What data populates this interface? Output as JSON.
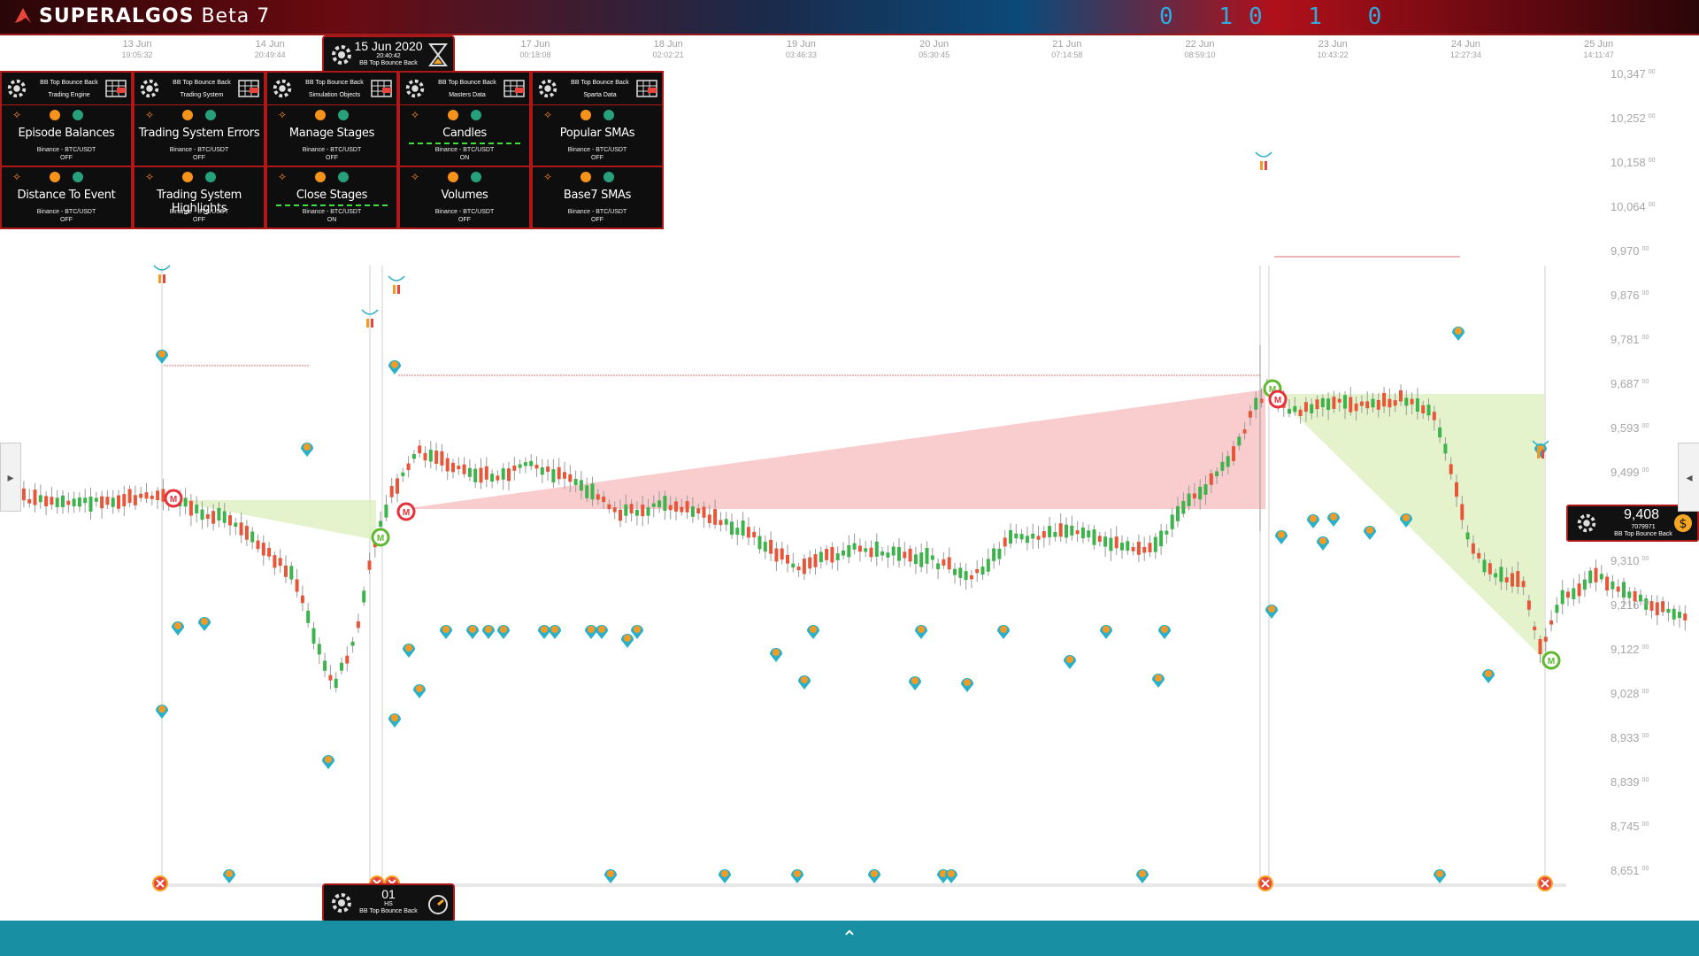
{
  "app": {
    "brand_a": "SUPER",
    "brand_b": "ALGOS",
    "version": "Beta 7",
    "banner_digits": "0 10 1 0"
  },
  "date_axis": [
    {
      "d": "13 Jun",
      "t": "19:05:32"
    },
    {
      "d": "14 Jun",
      "t": "20:49:44"
    },
    {
      "d": "17 Jun",
      "t": "00:18:08"
    },
    {
      "d": "18 Jun",
      "t": "02:02:21"
    },
    {
      "d": "19 Jun",
      "t": "03:46:33"
    },
    {
      "d": "20 Jun",
      "t": "05:30:45"
    },
    {
      "d": "21 Jun",
      "t": "07:14:58"
    },
    {
      "d": "22 Jun",
      "t": "08:59:10"
    },
    {
      "d": "23 Jun",
      "t": "10:43:22"
    },
    {
      "d": "24 Jun",
      "t": "12:27:34"
    },
    {
      "d": "25 Jun",
      "t": "14:11:47"
    }
  ],
  "price_axis": [
    "10,347",
    "10,252",
    "10,158",
    "10,064",
    "9,970",
    "9,876",
    "9,781",
    "9,687",
    "9,593",
    "9,499",
    "9,310",
    "9,216",
    "9,122",
    "9,028",
    "8,933",
    "8,839",
    "8,745",
    "8,651"
  ],
  "price_axis_suffix": "00",
  "time_machine": {
    "date": "15 Jun 2020",
    "time": "20:40:42",
    "name": "BB Top Bounce Back"
  },
  "time_frame": {
    "value": "01",
    "unit": "HS",
    "name": "BB Top Bounce Back"
  },
  "current_price": {
    "value": "9,408",
    "sub": "7079971",
    "name": "BB Top Bounce Back"
  },
  "layer_panels": [
    {
      "l1": "BB Top Bounce Back",
      "l2": "Trading Engine"
    },
    {
      "l1": "BB Top Bounce Back",
      "l2": "Trading System"
    },
    {
      "l1": "BB Top Bounce Back",
      "l2": "Simulation Objects"
    },
    {
      "l1": "BB Top Bounce Back",
      "l2": "Masters Data"
    },
    {
      "l1": "BB Top Bounce Back",
      "l2": "Sparta Data"
    }
  ],
  "layers_row1": [
    {
      "name": "Episode Balances",
      "market": "Binance - BTC/USDT",
      "status": "OFF"
    },
    {
      "name": "Trading System Errors",
      "market": "Binance - BTC/USDT",
      "status": "OFF"
    },
    {
      "name": "Manage Stages",
      "market": "Binance - BTC/USDT",
      "status": "OFF"
    },
    {
      "name": "Candles",
      "market": "Binance - BTC/USDT",
      "status": "ON"
    },
    {
      "name": "Popular SMAs",
      "market": "Binance - BTC/USDT",
      "status": "OFF"
    }
  ],
  "layers_row2": [
    {
      "name": "Distance To Event",
      "market": "Binance - BTC/USDT",
      "status": "OFF"
    },
    {
      "name": "Trading System Highlights",
      "market": "Binance - BTC/USDT",
      "status": "OFF"
    },
    {
      "name": "Close Stages",
      "market": "Binance - BTC/USDT",
      "status": "ON"
    },
    {
      "name": "Volumes",
      "market": "Binance - BTC/USDT",
      "status": "OFF"
    },
    {
      "name": "Base7 SMAs",
      "market": "Binance - BTC/USDT",
      "status": "OFF"
    }
  ],
  "colors": {
    "up": "#3cb44b",
    "down": "#e8563a",
    "stage_loss": "#f8c8c8",
    "stage_win": "#dff0c0",
    "panel_border": "#b01818",
    "bottom_bar": "#198fa3"
  },
  "icons": {
    "collapse": "double-chevron-up-icon",
    "left_handle": "triangle-right-icon",
    "right_handle": "triangle-left-icon"
  }
}
